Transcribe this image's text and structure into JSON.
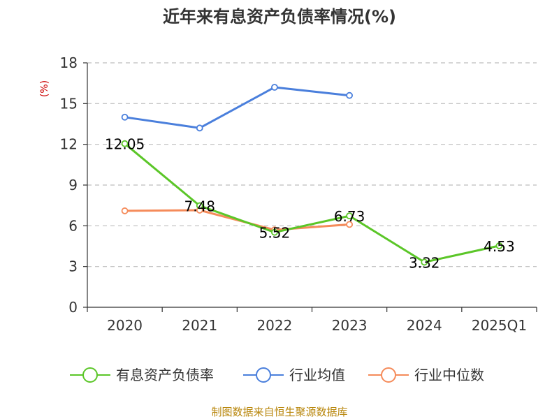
{
  "chart_data": {
    "type": "line",
    "title": "近年来有息资产负债率情况(%)",
    "ylabel": "(%)",
    "xlabel": "",
    "categories": [
      "2020",
      "2021",
      "2022",
      "2023",
      "2024",
      "2025Q1"
    ],
    "ylim": [
      0,
      18
    ],
    "yticks": [
      0,
      3,
      6,
      9,
      12,
      15,
      18
    ],
    "grid": "horizontal dashed",
    "legend_position": "bottom",
    "series": [
      {
        "name": "有息资产负债率",
        "color": "#5bc628",
        "values": [
          12.05,
          7.48,
          5.52,
          6.73,
          3.32,
          4.53
        ],
        "labels": [
          "12.05",
          "7.48",
          "5.52",
          "6.73",
          "3.32",
          "4.53"
        ]
      },
      {
        "name": "行业均值",
        "color": "#4a7fdc",
        "values": [
          14.0,
          13.2,
          16.2,
          15.6,
          null,
          null
        ]
      },
      {
        "name": "行业中位数",
        "color": "#f58b5a",
        "values": [
          7.1,
          7.15,
          5.7,
          6.1,
          null,
          null
        ]
      }
    ],
    "source": "制图数据来自恒生聚源数据库"
  }
}
